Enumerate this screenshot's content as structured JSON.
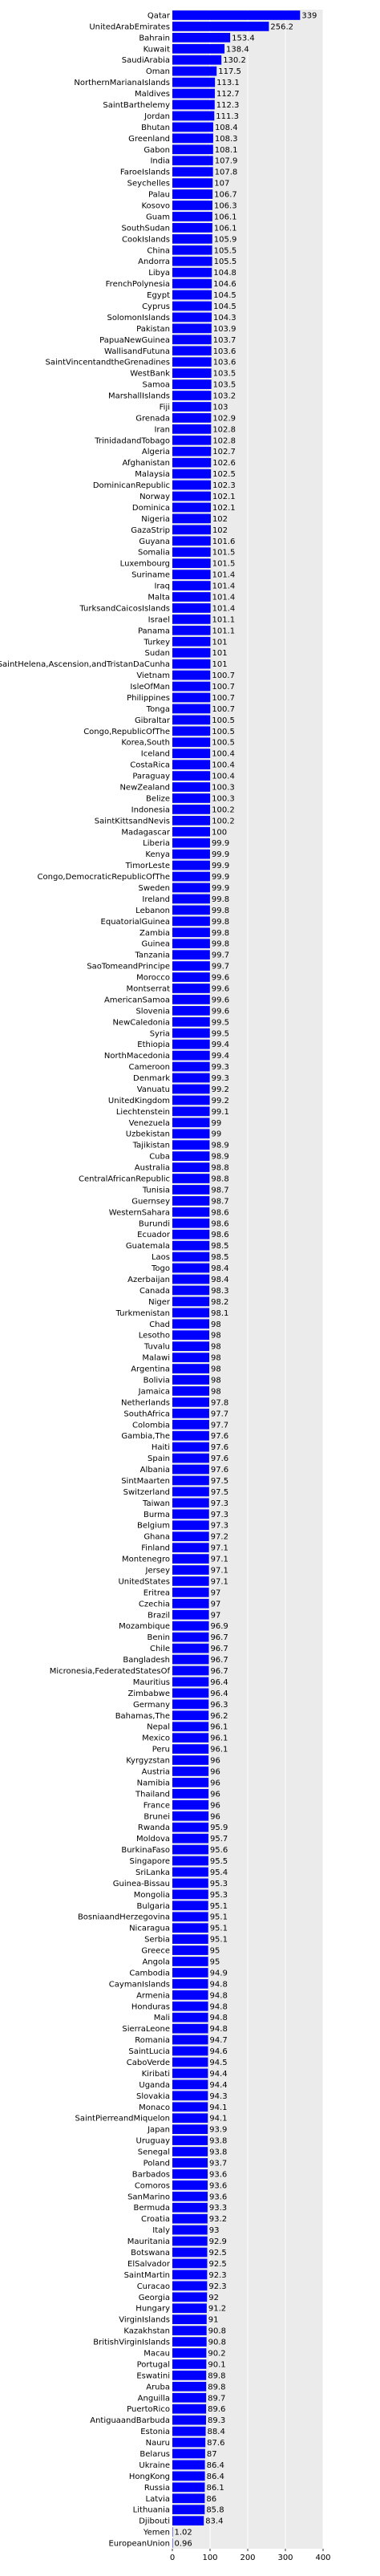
{
  "chart_data": {
    "type": "bar",
    "orientation": "horizontal",
    "title": "",
    "xlabel": "",
    "ylabel": "",
    "xlim": [
      0,
      400
    ],
    "xticks": [
      0,
      100,
      200,
      300,
      400
    ],
    "grid": true,
    "colors": {
      "bar": "#0000ff",
      "plot_bg": "#ebebeb",
      "grid": "#ffffff"
    },
    "categories": [
      "Qatar",
      "UnitedArabEmirates",
      "Bahrain",
      "Kuwait",
      "SaudiArabia",
      "Oman",
      "NorthernMarianaIslands",
      "Maldives",
      "SaintBarthelemy",
      "Jordan",
      "Bhutan",
      "Greenland",
      "Gabon",
      "India",
      "FaroeIslands",
      "Seychelles",
      "Palau",
      "Kosovo",
      "Guam",
      "SouthSudan",
      "CookIslands",
      "China",
      "Andorra",
      "Libya",
      "FrenchPolynesia",
      "Egypt",
      "Cyprus",
      "SolomonIslands",
      "Pakistan",
      "PapuaNewGuinea",
      "WallisandFutuna",
      "SaintVincentandtheGrenadines",
      "WestBank",
      "Samoa",
      "MarshallIslands",
      "Fiji",
      "Grenada",
      "Iran",
      "TrinidadandTobago",
      "Algeria",
      "Afghanistan",
      "Malaysia",
      "DominicanRepublic",
      "Norway",
      "Dominica",
      "Nigeria",
      "GazaStrip",
      "Guyana",
      "Somalia",
      "Luxembourg",
      "Suriname",
      "Iraq",
      "Malta",
      "TurksandCaicosIslands",
      "Israel",
      "Panama",
      "Turkey",
      "Sudan",
      "SaintHelena,Ascension,andTristanDaCunha",
      "Vietnam",
      "IsleOfMan",
      "Philippines",
      "Tonga",
      "Gibraltar",
      "Congo,RepublicOfThe",
      "Korea,South",
      "Iceland",
      "CostaRica",
      "Paraguay",
      "NewZealand",
      "Belize",
      "Indonesia",
      "SaintKittsandNevis",
      "Madagascar",
      "Liberia",
      "Kenya",
      "TimorLeste",
      "Congo,DemocraticRepublicOfThe",
      "Sweden",
      "Ireland",
      "Lebanon",
      "EquatorialGuinea",
      "Zambia",
      "Guinea",
      "Tanzania",
      "SaoTomeandPrincipe",
      "Morocco",
      "Montserrat",
      "AmericanSamoa",
      "Slovenia",
      "NewCaledonia",
      "Syria",
      "Ethiopia",
      "NorthMacedonia",
      "Cameroon",
      "Denmark",
      "Vanuatu",
      "UnitedKingdom",
      "Liechtenstein",
      "Venezuela",
      "Uzbekistan",
      "Tajikistan",
      "Cuba",
      "Australia",
      "CentralAfricanRepublic",
      "Tunisia",
      "Guernsey",
      "WesternSahara",
      "Burundi",
      "Ecuador",
      "Guatemala",
      "Laos",
      "Togo",
      "Azerbaijan",
      "Canada",
      "Niger",
      "Turkmenistan",
      "Chad",
      "Lesotho",
      "Tuvalu",
      "Malawi",
      "Argentina",
      "Bolivia",
      "Jamaica",
      "Netherlands",
      "SouthAfrica",
      "Colombia",
      "Gambia,The",
      "Haiti",
      "Spain",
      "Albania",
      "SintMaarten",
      "Switzerland",
      "Taiwan",
      "Burma",
      "Belgium",
      "Ghana",
      "Finland",
      "Montenegro",
      "Jersey",
      "UnitedStates",
      "Eritrea",
      "Czechia",
      "Brazil",
      "Mozambique",
      "Benin",
      "Chile",
      "Bangladesh",
      "Micronesia,FederatedStatesOf",
      "Mauritius",
      "Zimbabwe",
      "Germany",
      "Bahamas,The",
      "Nepal",
      "Mexico",
      "Peru",
      "Kyrgyzstan",
      "Austria",
      "Namibia",
      "Thailand",
      "France",
      "Brunei",
      "Rwanda",
      "Moldova",
      "BurkinaFaso",
      "Singapore",
      "SriLanka",
      "Guinea-Bissau",
      "Mongolia",
      "Bulgaria",
      "BosniaandHerzegovina",
      "Nicaragua",
      "Serbia",
      "Greece",
      "Angola",
      "Cambodia",
      "CaymanIslands",
      "Armenia",
      "Honduras",
      "Mali",
      "SierraLeone",
      "Romania",
      "SaintLucia",
      "CaboVerde",
      "Kiribati",
      "Uganda",
      "Slovakia",
      "Monaco",
      "SaintPierreandMiquelon",
      "Japan",
      "Uruguay",
      "Senegal",
      "Poland",
      "Barbados",
      "Comoros",
      "SanMarino",
      "Bermuda",
      "Croatia",
      "Italy",
      "Mauritania",
      "Botswana",
      "ElSalvador",
      "SaintMartin",
      "Curacao",
      "Georgia",
      "Hungary",
      "VirginIslands",
      "Kazakhstan",
      "BritishVirginIslands",
      "Macau",
      "Portugal",
      "Eswatini",
      "Aruba",
      "Anguilla",
      "PuertoRico",
      "AntiguaandBarbuda",
      "Estonia",
      "Nauru",
      "Belarus",
      "Ukraine",
      "HongKong",
      "Russia",
      "Latvia",
      "Lithuania",
      "Djibouti",
      "Yemen",
      "EuropeanUnion"
    ],
    "values": [
      339,
      256.2,
      153.4,
      138.4,
      130.2,
      117.5,
      113.1,
      112.7,
      112.3,
      111.3,
      108.4,
      108.3,
      108.1,
      107.9,
      107.8,
      107,
      106.7,
      106.3,
      106.1,
      106.1,
      105.9,
      105.5,
      105.5,
      104.8,
      104.6,
      104.5,
      104.5,
      104.3,
      103.9,
      103.7,
      103.6,
      103.6,
      103.5,
      103.5,
      103.2,
      103,
      102.9,
      102.8,
      102.8,
      102.7,
      102.6,
      102.5,
      102.3,
      102.1,
      102.1,
      102,
      102,
      101.6,
      101.5,
      101.5,
      101.4,
      101.4,
      101.4,
      101.4,
      101.1,
      101.1,
      101,
      101,
      101,
      100.7,
      100.7,
      100.7,
      100.7,
      100.5,
      100.5,
      100.5,
      100.4,
      100.4,
      100.4,
      100.3,
      100.3,
      100.2,
      100.2,
      100,
      99.9,
      99.9,
      99.9,
      99.9,
      99.9,
      99.8,
      99.8,
      99.8,
      99.8,
      99.8,
      99.7,
      99.7,
      99.6,
      99.6,
      99.6,
      99.6,
      99.5,
      99.5,
      99.4,
      99.4,
      99.3,
      99.3,
      99.2,
      99.2,
      99.1,
      99,
      99,
      98.9,
      98.9,
      98.8,
      98.8,
      98.7,
      98.7,
      98.6,
      98.6,
      98.6,
      98.5,
      98.5,
      98.4,
      98.4,
      98.3,
      98.2,
      98.1,
      98,
      98,
      98,
      98,
      98,
      98,
      98,
      97.8,
      97.7,
      97.7,
      97.6,
      97.6,
      97.6,
      97.6,
      97.5,
      97.5,
      97.3,
      97.3,
      97.3,
      97.2,
      97.1,
      97.1,
      97.1,
      97.1,
      97,
      97,
      97,
      96.9,
      96.7,
      96.7,
      96.7,
      96.7,
      96.4,
      96.4,
      96.3,
      96.2,
      96.1,
      96.1,
      96.1,
      96,
      96,
      96,
      96,
      96,
      96,
      95.9,
      95.7,
      95.6,
      95.5,
      95.4,
      95.3,
      95.3,
      95.1,
      95.1,
      95.1,
      95.1,
      95,
      95,
      94.9,
      94.8,
      94.8,
      94.8,
      94.8,
      94.8,
      94.7,
      94.6,
      94.5,
      94.4,
      94.4,
      94.3,
      94.1,
      94.1,
      93.9,
      93.8,
      93.8,
      93.7,
      93.6,
      93.6,
      93.6,
      93.3,
      93.2,
      93,
      92.9,
      92.5,
      92.5,
      92.3,
      92.3,
      92,
      91.2,
      91,
      90.8,
      90.8,
      90.2,
      90.1,
      89.8,
      89.8,
      89.7,
      89.6,
      89.3,
      88.4,
      87.6,
      87,
      86.4,
      86.4,
      86.1,
      86,
      85.8,
      83.4,
      1.02,
      0.96
    ],
    "value_labels": [
      "339",
      "256.2",
      "153.4",
      "138.4",
      "130.2",
      "117.5",
      "113.1",
      "112.7",
      "112.3",
      "111.3",
      "108.4",
      "108.3",
      "108.1",
      "107.9",
      "107.8",
      "107",
      "106.7",
      "106.3",
      "106.1",
      "106.1",
      "105.9",
      "105.5",
      "105.5",
      "104.8",
      "104.6",
      "104.5",
      "104.5",
      "104.3",
      "103.9",
      "103.7",
      "103.6",
      "103.6",
      "103.5",
      "103.5",
      "103.2",
      "103",
      "102.9",
      "102.8",
      "102.8",
      "102.7",
      "102.6",
      "102.5",
      "102.3",
      "102.1",
      "102.1",
      "102",
      "102",
      "101.6",
      "101.5",
      "101.5",
      "101.4",
      "101.4",
      "101.4",
      "101.4",
      "101.1",
      "101.1",
      "101",
      "101",
      "101",
      "100.7",
      "100.7",
      "100.7",
      "100.7",
      "100.5",
      "100.5",
      "100.5",
      "100.4",
      "100.4",
      "100.4",
      "100.3",
      "100.3",
      "100.2",
      "100.2",
      "100",
      "99.9",
      "99.9",
      "99.9",
      "99.9",
      "99.9",
      "99.8",
      "99.8",
      "99.8",
      "99.8",
      "99.8",
      "99.7",
      "99.7",
      "99.6",
      "99.6",
      "99.6",
      "99.6",
      "99.5",
      "99.5",
      "99.4",
      "99.4",
      "99.3",
      "99.3",
      "99.2",
      "99.2",
      "99.1",
      "99",
      "99",
      "98.9",
      "98.9",
      "98.8",
      "98.8",
      "98.7",
      "98.7",
      "98.6",
      "98.6",
      "98.6",
      "98.5",
      "98.5",
      "98.4",
      "98.4",
      "98.3",
      "98.2",
      "98.1",
      "98",
      "98",
      "98",
      "98",
      "98",
      "98",
      "98",
      "97.8",
      "97.7",
      "97.7",
      "97.6",
      "97.6",
      "97.6",
      "97.6",
      "97.5",
      "97.5",
      "97.3",
      "97.3",
      "97.3",
      "97.2",
      "97.1",
      "97.1",
      "97.1",
      "97.1",
      "97",
      "97",
      "97",
      "96.9",
      "96.7",
      "96.7",
      "96.7",
      "96.7",
      "96.4",
      "96.4",
      "96.3",
      "96.2",
      "96.1",
      "96.1",
      "96.1",
      "96",
      "96",
      "96",
      "96",
      "96",
      "96",
      "95.9",
      "95.7",
      "95.6",
      "95.5",
      "95.4",
      "95.3",
      "95.3",
      "95.1",
      "95.1",
      "95.1",
      "95.1",
      "95",
      "95",
      "94.9",
      "94.8",
      "94.8",
      "94.8",
      "94.8",
      "94.8",
      "94.7",
      "94.6",
      "94.5",
      "94.4",
      "94.4",
      "94.3",
      "94.1",
      "94.1",
      "93.9",
      "93.8",
      "93.8",
      "93.7",
      "93.6",
      "93.6",
      "93.6",
      "93.3",
      "93.2",
      "93",
      "92.9",
      "92.5",
      "92.5",
      "92.3",
      "92.3",
      "92",
      "91.2",
      "91",
      "90.8",
      "90.8",
      "90.2",
      "90.1",
      "89.8",
      "89.8",
      "89.7",
      "89.6",
      "89.3",
      "88.4",
      "87.6",
      "87",
      "86.4",
      "86.4",
      "86.1",
      "86",
      "85.8",
      "83.4",
      "1.02",
      "0.96"
    ]
  }
}
